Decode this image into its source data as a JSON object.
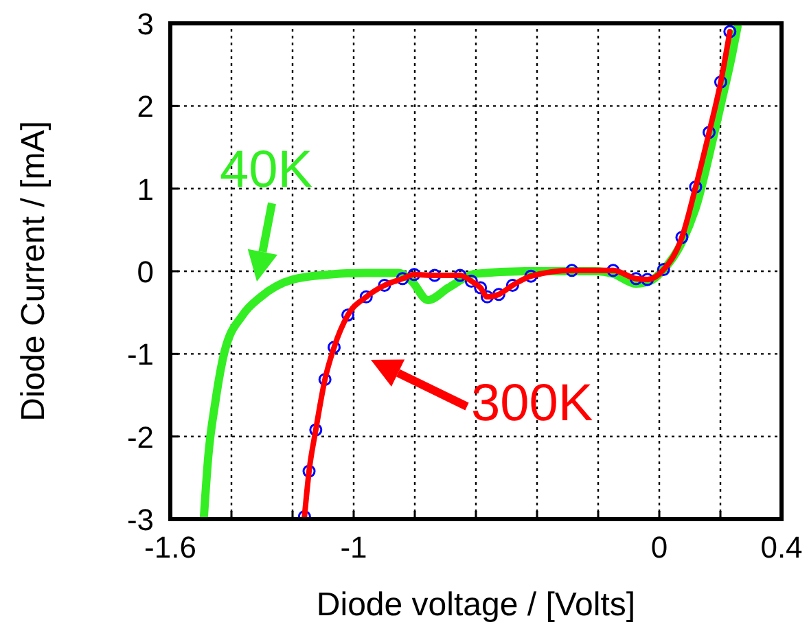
{
  "chart_data": {
    "type": "line",
    "xlabel": "Diode voltage / [Volts]",
    "ylabel": "Diode Current / [mA]",
    "xlim": [
      -1.6,
      0.4
    ],
    "ylim": [
      -3,
      3
    ],
    "xticks": [
      -1.6,
      {
        "value": -1.4,
        "label": null
      },
      {
        "value": -1.2,
        "label": null
      },
      -1,
      {
        "value": -0.8,
        "label": null
      },
      {
        "value": -0.6,
        "label": null
      },
      {
        "value": -0.4,
        "label": null
      },
      {
        "value": -0.2,
        "label": null
      },
      0,
      {
        "value": 0.2,
        "label": null
      },
      0.4
    ],
    "yticks": [
      -3,
      -2,
      -1,
      0,
      1,
      2,
      3
    ],
    "grid": true,
    "line_style": "solid",
    "series": [
      {
        "name": "40K",
        "color": "#33ee22",
        "marker": "none",
        "x": [
          -1.49,
          -1.476,
          -1.453,
          -1.423,
          -1.363,
          -1.304,
          -1.199,
          -1.079,
          -0.959,
          -0.854,
          -0.81,
          -0.757,
          -0.69,
          -0.6,
          -0.435,
          -0.21,
          -0.151,
          -0.076,
          -0.031,
          0.014,
          0.074,
          0.126,
          0.163,
          0.201,
          0.238,
          0.256
        ],
        "values": [
          -2.97,
          -2.25,
          -1.59,
          -0.98,
          -0.53,
          -0.31,
          -0.1,
          -0.04,
          -0.02,
          -0.02,
          -0.12,
          -0.35,
          -0.2,
          -0.03,
          0,
          0,
          -0.03,
          -0.15,
          -0.12,
          0.02,
          0.35,
          0.85,
          1.4,
          2.01,
          2.62,
          2.96
        ]
      },
      {
        "type": "scatter",
        "color": "#0000ff",
        "marker": "circle",
        "x": [
          -1.161,
          -1.146,
          -1.124,
          -1.094,
          -1.064,
          -1.019,
          -0.959,
          -0.899,
          -0.84,
          -0.802,
          -0.735,
          -0.652,
          -0.615,
          -0.585,
          -0.563,
          -0.525,
          -0.48,
          -0.42,
          -0.286,
          -0.151,
          -0.076,
          -0.039,
          0.014,
          0.074,
          0.119,
          0.163,
          0.201,
          0.231
        ],
        "values": [
          -2.97,
          -2.42,
          -1.92,
          -1.31,
          -0.92,
          -0.53,
          -0.31,
          -0.17,
          -0.09,
          -0.04,
          -0.05,
          -0.05,
          -0.12,
          -0.2,
          -0.31,
          -0.28,
          -0.17,
          -0.06,
          0.01,
          0.01,
          -0.09,
          -0.1,
          0.02,
          0.41,
          1.02,
          1.68,
          2.29,
          2.9
        ]
      },
      {
        "name": "300K",
        "color": "#ff0000",
        "marker": "none",
        "x": [
          -1.161,
          -1.146,
          -1.124,
          -1.094,
          -1.064,
          -1.019,
          -0.959,
          -0.899,
          -0.84,
          -0.802,
          -0.735,
          -0.652,
          -0.615,
          -0.585,
          -0.563,
          -0.525,
          -0.48,
          -0.42,
          -0.286,
          -0.151,
          -0.076,
          -0.039,
          0.014,
          0.074,
          0.119,
          0.163,
          0.201,
          0.231
        ],
        "values": [
          -2.97,
          -2.42,
          -1.92,
          -1.31,
          -0.92,
          -0.53,
          -0.31,
          -0.17,
          -0.09,
          -0.04,
          -0.05,
          -0.05,
          -0.12,
          -0.2,
          -0.31,
          -0.28,
          -0.17,
          -0.06,
          0.01,
          0.01,
          -0.09,
          -0.1,
          0.02,
          0.41,
          1.02,
          1.68,
          2.29,
          2.9
        ]
      }
    ]
  }
}
